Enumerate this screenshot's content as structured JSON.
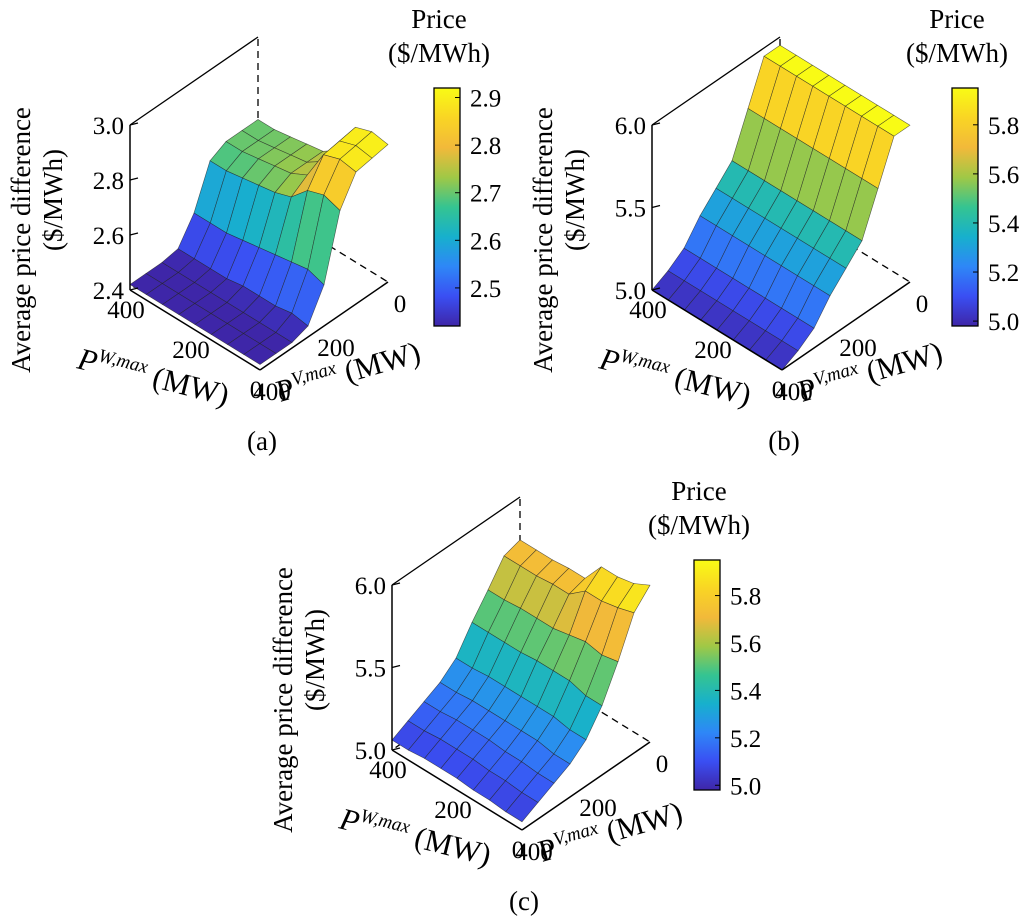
{
  "panels": [
    {
      "id": "a",
      "caption": "(a)"
    },
    {
      "id": "b",
      "caption": "(b)"
    },
    {
      "id": "c",
      "caption": "(c)"
    }
  ],
  "colormap": [
    "#3e26a8",
    "#3a4ff3",
    "#2e87f7",
    "#17b0cd",
    "#35c491",
    "#a0c846",
    "#f2b93a",
    "#f9d524",
    "#f9fb15"
  ],
  "chart_data": [
    {
      "type": "surface",
      "panel": "(a)",
      "zlabel_line1": "Average price difference",
      "zlabel_line2": "($/MWh)",
      "xlabel_main": "P",
      "xlabel_sup": "W,max",
      "xlabel_unit": " (MW)",
      "ylabel_main": "P",
      "ylabel_sup": "V,max",
      "ylabel_unit": " (MW)",
      "x_ticks": [
        "400",
        "200",
        "0"
      ],
      "y_ticks": [
        "400",
        "200",
        "0"
      ],
      "z_ticks": [
        "3.0",
        "2.8",
        "2.6",
        "2.4"
      ],
      "zlim": [
        2.4,
        3.0
      ],
      "colorbar_title_line1": "Price",
      "colorbar_title_line2": "($/MWh)",
      "colorbar_ticks": [
        "2.9",
        "2.8",
        "2.7",
        "2.6",
        "2.5"
      ],
      "colorbar_tick_values": [
        2.9,
        2.8,
        2.7,
        2.6,
        2.5
      ],
      "colorbar_range": [
        2.42,
        2.92
      ],
      "x_values": [
        0,
        50,
        100,
        150,
        200,
        250,
        300,
        350,
        400
      ],
      "y_values": [
        0,
        50,
        100,
        150,
        200,
        250,
        300,
        350,
        400
      ],
      "z_values": [
        [
          2.9,
          2.89,
          2.88,
          2.78,
          2.55,
          2.44,
          2.42,
          2.42,
          2.42
        ],
        [
          2.91,
          2.9,
          2.89,
          2.8,
          2.57,
          2.45,
          2.42,
          2.42,
          2.42
        ],
        [
          2.89,
          2.88,
          2.87,
          2.78,
          2.56,
          2.44,
          2.42,
          2.42,
          2.42
        ],
        [
          2.77,
          2.77,
          2.76,
          2.72,
          2.55,
          2.44,
          2.42,
          2.42,
          2.42
        ],
        [
          2.73,
          2.73,
          2.73,
          2.7,
          2.54,
          2.44,
          2.42,
          2.42,
          2.42
        ],
        [
          2.72,
          2.72,
          2.72,
          2.69,
          2.53,
          2.43,
          2.42,
          2.42,
          2.42
        ],
        [
          2.71,
          2.71,
          2.71,
          2.68,
          2.52,
          2.43,
          2.42,
          2.42,
          2.42
        ],
        [
          2.7,
          2.7,
          2.7,
          2.67,
          2.52,
          2.43,
          2.42,
          2.42,
          2.42
        ],
        [
          2.7,
          2.7,
          2.7,
          2.67,
          2.52,
          2.43,
          2.42,
          2.42,
          2.42
        ]
      ]
    },
    {
      "type": "surface",
      "panel": "(b)",
      "zlabel_line1": "Average price difference",
      "zlabel_line2": "($/MWh)",
      "xlabel_main": "P",
      "xlabel_sup": "W,max",
      "xlabel_unit": " (MW)",
      "ylabel_main": "P",
      "ylabel_sup": "V,max",
      "ylabel_unit": " (MW)",
      "x_ticks": [
        "400",
        "200",
        "0"
      ],
      "y_ticks": [
        "400",
        "200",
        "0"
      ],
      "z_ticks": [
        "6.0",
        "5.5",
        "5.0"
      ],
      "zlim": [
        5.0,
        6.0
      ],
      "colorbar_title_line1": "Price",
      "colorbar_title_line2": "($/MWh)",
      "colorbar_ticks": [
        "5.8",
        "5.6",
        "5.4",
        "5.2",
        "5.0"
      ],
      "colorbar_tick_values": [
        5.8,
        5.6,
        5.4,
        5.2,
        5.0
      ],
      "colorbar_range": [
        4.98,
        5.95
      ],
      "x_values": [
        0,
        50,
        100,
        150,
        200,
        250,
        300,
        350,
        400
      ],
      "y_values": [
        0,
        50,
        100,
        150,
        200,
        250,
        300,
        350,
        400
      ],
      "z_values": [
        [
          5.95,
          5.95,
          5.7,
          5.45,
          5.35,
          5.25,
          5.12,
          5.05,
          5.0
        ],
        [
          5.95,
          5.95,
          5.7,
          5.45,
          5.35,
          5.25,
          5.12,
          5.05,
          5.0
        ],
        [
          5.95,
          5.95,
          5.7,
          5.45,
          5.35,
          5.25,
          5.12,
          5.05,
          5.0
        ],
        [
          5.95,
          5.95,
          5.7,
          5.45,
          5.35,
          5.25,
          5.12,
          5.05,
          5.0
        ],
        [
          5.95,
          5.95,
          5.7,
          5.45,
          5.35,
          5.25,
          5.12,
          5.05,
          5.0
        ],
        [
          5.95,
          5.95,
          5.7,
          5.45,
          5.35,
          5.25,
          5.12,
          5.05,
          5.0
        ],
        [
          5.95,
          5.95,
          5.7,
          5.45,
          5.35,
          5.25,
          5.12,
          5.05,
          5.0
        ],
        [
          5.95,
          5.95,
          5.7,
          5.45,
          5.35,
          5.25,
          5.12,
          5.05,
          5.0
        ],
        [
          5.95,
          5.95,
          5.7,
          5.45,
          5.35,
          5.25,
          5.12,
          5.05,
          5.0
        ]
      ]
    },
    {
      "type": "surface",
      "panel": "(c)",
      "zlabel_line1": "Average price difference",
      "zlabel_line2": "($/MWh)",
      "xlabel_main": "P",
      "xlabel_sup": "W,max",
      "xlabel_unit": " (MW)",
      "ylabel_main": "P",
      "ylabel_sup": "V,max",
      "ylabel_unit": " (MW)",
      "x_ticks": [
        "400",
        "200",
        "0"
      ],
      "y_ticks": [
        "400",
        "200",
        "0"
      ],
      "z_ticks": [
        "6.0",
        "5.5",
        "5.0"
      ],
      "zlim": [
        5.0,
        6.0
      ],
      "colorbar_title_line1": "Price",
      "colorbar_title_line2": "($/MWh)",
      "colorbar_ticks": [
        "5.8",
        "5.6",
        "5.4",
        "5.2",
        "5.0"
      ],
      "colorbar_tick_values": [
        5.8,
        5.6,
        5.4,
        5.2,
        5.0
      ],
      "colorbar_range": [
        4.98,
        5.95
      ],
      "x_values": [
        0,
        50,
        100,
        150,
        200,
        250,
        300,
        350,
        400
      ],
      "y_values": [
        0,
        50,
        100,
        150,
        200,
        250,
        300,
        350,
        400
      ],
      "z_values": [
        [
          5.95,
          5.85,
          5.62,
          5.42,
          5.28,
          5.2,
          5.15,
          5.1,
          5.05
        ],
        [
          5.9,
          5.82,
          5.6,
          5.42,
          5.28,
          5.2,
          5.15,
          5.1,
          5.05
        ],
        [
          5.88,
          5.8,
          5.62,
          5.45,
          5.3,
          5.22,
          5.16,
          5.11,
          5.06
        ],
        [
          5.88,
          5.8,
          5.6,
          5.45,
          5.3,
          5.22,
          5.16,
          5.11,
          5.06
        ],
        [
          5.75,
          5.72,
          5.58,
          5.45,
          5.3,
          5.22,
          5.17,
          5.12,
          5.07
        ],
        [
          5.75,
          5.72,
          5.58,
          5.44,
          5.3,
          5.22,
          5.17,
          5.12,
          5.07
        ],
        [
          5.74,
          5.71,
          5.58,
          5.44,
          5.3,
          5.22,
          5.17,
          5.12,
          5.07
        ],
        [
          5.74,
          5.71,
          5.57,
          5.44,
          5.29,
          5.21,
          5.16,
          5.11,
          5.06
        ],
        [
          5.74,
          5.71,
          5.57,
          5.44,
          5.29,
          5.21,
          5.16,
          5.11,
          5.06
        ]
      ]
    }
  ]
}
